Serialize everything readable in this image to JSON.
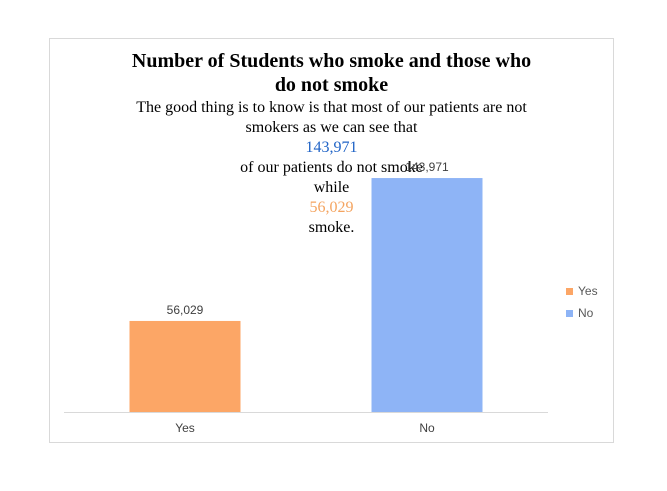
{
  "chart_data": {
    "type": "bar",
    "title": "Number of Students who smoke and those who do not smoke",
    "title_lines": [
      "Number of Students who smoke and those who",
      "do not smoke"
    ],
    "subtitle_parts": {
      "line1": "The good thing is to know is that most of our patients are not",
      "line2_pre": "smokers as we can see that ",
      "line2_value": "143,971",
      "line2_post": " of our patients do not smoke",
      "line3_pre": "while ",
      "line3_value": "56,029",
      "line3_post": " smoke."
    },
    "categories": [
      "Yes",
      "No"
    ],
    "values": [
      56029,
      143971
    ],
    "data_labels": [
      "56,029",
      "143,971"
    ],
    "colors": [
      "#fca666",
      "#8eb4f6"
    ],
    "ylim": [
      0,
      160000
    ],
    "grid": false,
    "legend": {
      "position": "right",
      "entries": [
        "Yes",
        "No"
      ]
    },
    "xlabel": "",
    "ylabel": ""
  }
}
